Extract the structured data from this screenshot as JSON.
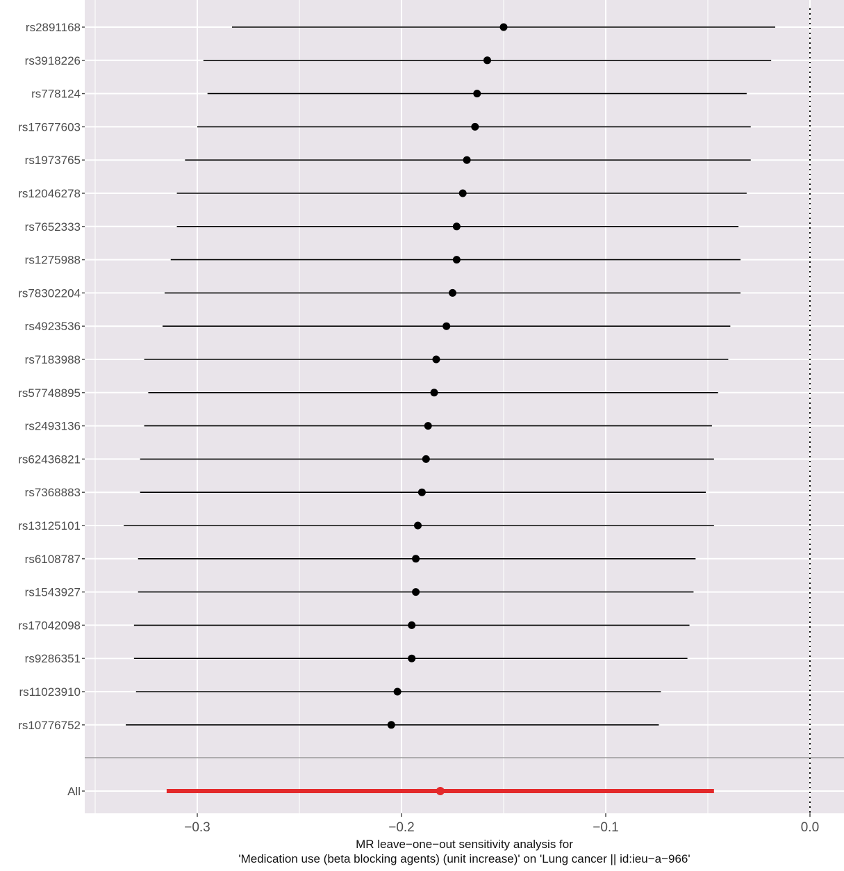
{
  "chart_data": {
    "type": "forest",
    "xlabel_line1": "MR leave−one−out sensitivity analysis for",
    "xlabel_line2": "'Medication use (beta blocking agents) (unit increase)' on 'Lung cancer || id:ieu−a−966'",
    "xlim": [
      -0.35,
      0.0
    ],
    "x_ticks": [
      -0.3,
      -0.2,
      -0.1,
      0.0
    ],
    "x_tick_labels": [
      "−0.3",
      "−0.2",
      "−0.1",
      "0.0"
    ],
    "reference_line": 0.0,
    "grid": true,
    "colors": {
      "panel": "#e9e4ea",
      "snp": "#000000",
      "all": "#e3292b",
      "grid": "#ffffff"
    },
    "snps": [
      {
        "label": "rs2891168",
        "est": -0.15,
        "lo": -0.283,
        "hi": -0.017
      },
      {
        "label": "rs3918226",
        "est": -0.158,
        "lo": -0.297,
        "hi": -0.019
      },
      {
        "label": "rs778124",
        "est": -0.163,
        "lo": -0.295,
        "hi": -0.031
      },
      {
        "label": "rs17677603",
        "est": -0.164,
        "lo": -0.3,
        "hi": -0.029
      },
      {
        "label": "rs1973765",
        "est": -0.168,
        "lo": -0.306,
        "hi": -0.029
      },
      {
        "label": "rs12046278",
        "est": -0.17,
        "lo": -0.31,
        "hi": -0.031
      },
      {
        "label": "rs7652333",
        "est": -0.173,
        "lo": -0.31,
        "hi": -0.035
      },
      {
        "label": "rs1275988",
        "est": -0.173,
        "lo": -0.313,
        "hi": -0.034
      },
      {
        "label": "rs78302204",
        "est": -0.175,
        "lo": -0.316,
        "hi": -0.034
      },
      {
        "label": "rs4923536",
        "est": -0.178,
        "lo": -0.317,
        "hi": -0.039
      },
      {
        "label": "rs7183988",
        "est": -0.183,
        "lo": -0.326,
        "hi": -0.04
      },
      {
        "label": "rs57748895",
        "est": -0.184,
        "lo": -0.324,
        "hi": -0.045
      },
      {
        "label": "rs2493136",
        "est": -0.187,
        "lo": -0.326,
        "hi": -0.048
      },
      {
        "label": "rs62436821",
        "est": -0.188,
        "lo": -0.328,
        "hi": -0.047
      },
      {
        "label": "rs7368883",
        "est": -0.19,
        "lo": -0.328,
        "hi": -0.051
      },
      {
        "label": "rs13125101",
        "est": -0.192,
        "lo": -0.336,
        "hi": -0.047
      },
      {
        "label": "rs6108787",
        "est": -0.193,
        "lo": -0.329,
        "hi": -0.056
      },
      {
        "label": "rs1543927",
        "est": -0.193,
        "lo": -0.329,
        "hi": -0.057
      },
      {
        "label": "rs17042098",
        "est": -0.195,
        "lo": -0.331,
        "hi": -0.059
      },
      {
        "label": "rs9286351",
        "est": -0.195,
        "lo": -0.331,
        "hi": -0.06
      },
      {
        "label": "rs11023910",
        "est": -0.202,
        "lo": -0.33,
        "hi": -0.073
      },
      {
        "label": "rs10776752",
        "est": -0.205,
        "lo": -0.335,
        "hi": -0.074
      }
    ],
    "all": {
      "label": "All",
      "est": -0.181,
      "lo": -0.315,
      "hi": -0.047
    }
  }
}
